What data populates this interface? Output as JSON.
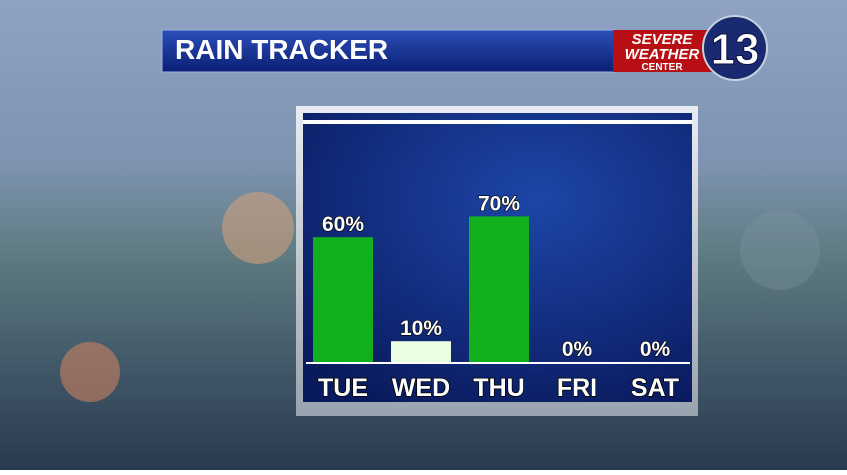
{
  "chart_data": {
    "type": "bar",
    "title": "RAIN TRACKER",
    "categories": [
      "TUE",
      "WED",
      "THU",
      "FRI",
      "SAT"
    ],
    "values": [
      60,
      10,
      70,
      0,
      0
    ],
    "value_labels": [
      "60%",
      "10%",
      "70%",
      "0%",
      "0%"
    ],
    "colors": [
      "#12b01c",
      "#eaffe2",
      "#12b01c",
      "#12b01c",
      "#12b01c"
    ]
  },
  "logo": {
    "line1": "SEVERE",
    "line2": "WEATHER",
    "line3": "CENTER",
    "channel": "13"
  }
}
